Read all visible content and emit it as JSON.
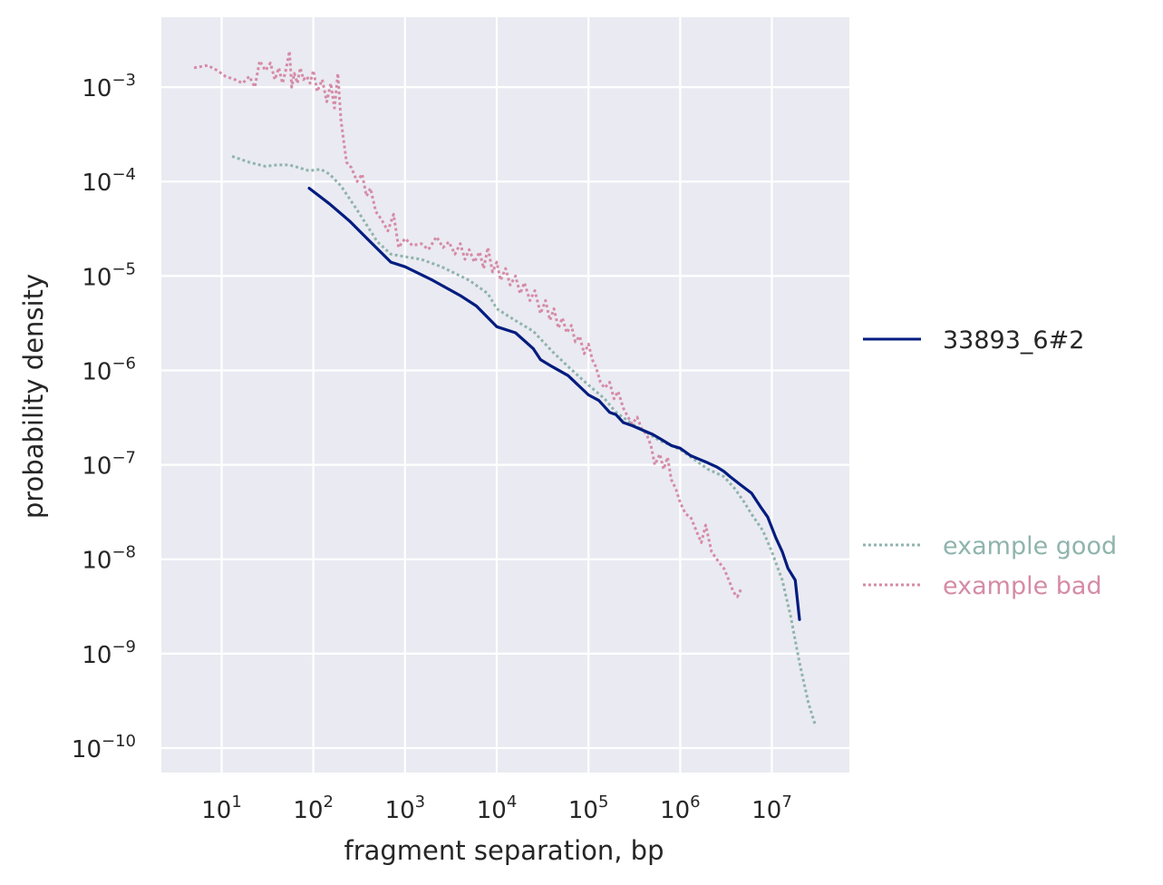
{
  "chart_data": {
    "type": "line",
    "title": "",
    "xlabel": "fragment separation, bp",
    "ylabel": "probability density",
    "xscale": "log",
    "yscale": "log",
    "xlim": [
      2.2,
      70000000
    ],
    "ylim": [
      5.5e-11,
      0.0055
    ],
    "grid": true,
    "background": "#eaeaf2",
    "x_tick_labels": [
      {
        "value": 10,
        "base": "10",
        "exp": "1"
      },
      {
        "value": 100,
        "base": "10",
        "exp": "2"
      },
      {
        "value": 1000,
        "base": "10",
        "exp": "3"
      },
      {
        "value": 10000,
        "base": "10",
        "exp": "4"
      },
      {
        "value": 100000,
        "base": "10",
        "exp": "5"
      },
      {
        "value": 1000000,
        "base": "10",
        "exp": "6"
      },
      {
        "value": 10000000,
        "base": "10",
        "exp": "7"
      }
    ],
    "y_tick_labels": [
      {
        "value": 0.001,
        "base": "10",
        "exp": "−3"
      },
      {
        "value": 0.0001,
        "base": "10",
        "exp": "−4"
      },
      {
        "value": 1e-05,
        "base": "10",
        "exp": "−5"
      },
      {
        "value": 1e-06,
        "base": "10",
        "exp": "−6"
      },
      {
        "value": 1e-07,
        "base": "10",
        "exp": "−7"
      },
      {
        "value": 1e-08,
        "base": "10",
        "exp": "−8"
      },
      {
        "value": 1e-09,
        "base": "10",
        "exp": "−9"
      },
      {
        "value": 1e-10,
        "base": "10",
        "exp": "−10"
      }
    ],
    "legend_placement": "right",
    "series": [
      {
        "name": "33893_6#2",
        "color": "#001c7f",
        "style": "solid",
        "legend_group": "upper",
        "points": [
          [
            90,
            8.5e-05
          ],
          [
            150,
            5.8e-05
          ],
          [
            250,
            3.8e-05
          ],
          [
            400,
            2.4e-05
          ],
          [
            700,
            1.4e-05
          ],
          [
            1000,
            1.25e-05
          ],
          [
            2000,
            9e-06
          ],
          [
            4000,
            6.2e-06
          ],
          [
            6000,
            4.8e-06
          ],
          [
            10000,
            2.9e-06
          ],
          [
            16000,
            2.5e-06
          ],
          [
            25000,
            1.7e-06
          ],
          [
            30000,
            1.3e-06
          ],
          [
            40000,
            1.1e-06
          ],
          [
            60000,
            8.8e-07
          ],
          [
            100000,
            5.5e-07
          ],
          [
            130000,
            4.8e-07
          ],
          [
            170000,
            3.6e-07
          ],
          [
            200000,
            3.4e-07
          ],
          [
            240000,
            2.8e-07
          ],
          [
            300000,
            2.6e-07
          ],
          [
            400000,
            2.3e-07
          ],
          [
            500000,
            2.1e-07
          ],
          [
            600000,
            1.9e-07
          ],
          [
            800000,
            1.6e-07
          ],
          [
            1000000,
            1.5e-07
          ],
          [
            1300000,
            1.25e-07
          ],
          [
            1600000,
            1.15e-07
          ],
          [
            2000000,
            1.05e-07
          ],
          [
            2500000,
            9.5e-08
          ],
          [
            3000000,
            8.5e-08
          ],
          [
            3500000,
            7.5e-08
          ],
          [
            4500000,
            6.2e-08
          ],
          [
            6000000,
            5e-08
          ],
          [
            7500000,
            3.6e-08
          ],
          [
            9000000,
            2.8e-08
          ],
          [
            11000000,
            1.7e-08
          ],
          [
            13000000,
            1.2e-08
          ],
          [
            15000000,
            8e-09
          ],
          [
            18000000,
            6e-09
          ],
          [
            20000000,
            2.3e-09
          ]
        ]
      },
      {
        "name": "example good",
        "color": "#8fb4ac",
        "style": "dotted",
        "legend_group": "lower",
        "points": [
          [
            13,
            0.000185
          ],
          [
            20,
            0.00016
          ],
          [
            30,
            0.000145
          ],
          [
            40,
            0.00015
          ],
          [
            55,
            0.00015
          ],
          [
            70,
            0.00014
          ],
          [
            90,
            0.00013
          ],
          [
            120,
            0.000135
          ],
          [
            150,
            0.00012
          ],
          [
            200,
            9e-05
          ],
          [
            300,
            5e-05
          ],
          [
            500,
            2.3e-05
          ],
          [
            700,
            1.7e-05
          ],
          [
            1000,
            1.6e-05
          ],
          [
            1500,
            1.5e-05
          ],
          [
            2500,
            1.25e-05
          ],
          [
            5000,
            9e-06
          ],
          [
            8000,
            6.5e-06
          ],
          [
            10000,
            4.5e-06
          ],
          [
            15000,
            3.5e-06
          ],
          [
            25000,
            2.6e-06
          ],
          [
            40000,
            1.6e-06
          ],
          [
            60000,
            1.1e-06
          ],
          [
            80000,
            8.5e-07
          ],
          [
            100000,
            7e-07
          ],
          [
            150000,
            5e-07
          ],
          [
            200000,
            3.6e-07
          ],
          [
            300000,
            2.7e-07
          ],
          [
            400000,
            2.3e-07
          ],
          [
            600000,
            1.8e-07
          ],
          [
            800000,
            1.6e-07
          ],
          [
            1000000,
            1.45e-07
          ],
          [
            1500000,
            1.1e-07
          ],
          [
            2000000,
            9e-08
          ],
          [
            3000000,
            7.5e-08
          ],
          [
            4000000,
            5.5e-08
          ],
          [
            5000000,
            4e-08
          ],
          [
            6000000,
            3e-08
          ],
          [
            8000000,
            2e-08
          ],
          [
            10000000,
            1.2e-08
          ],
          [
            13000000,
            6e-09
          ],
          [
            16000000,
            2.5e-09
          ],
          [
            20000000,
            8e-10
          ],
          [
            25000000,
            3e-10
          ],
          [
            30000000,
            1.7e-10
          ]
        ]
      },
      {
        "name": "example bad",
        "color": "#d58ba6",
        "style": "dotted",
        "legend_group": "lower",
        "points": [
          [
            5,
            0.0016
          ],
          [
            7,
            0.0017
          ],
          [
            9,
            0.0015
          ],
          [
            11,
            0.0013
          ],
          [
            14,
            0.0012
          ],
          [
            17,
            0.0011
          ],
          [
            20,
            0.0013
          ],
          [
            23,
            0.001
          ],
          [
            26,
            0.0019
          ],
          [
            30,
            0.0015
          ],
          [
            34,
            0.0018
          ],
          [
            38,
            0.0012
          ],
          [
            42,
            0.0016
          ],
          [
            46,
            0.0011
          ],
          [
            50,
            0.0015
          ],
          [
            55,
            0.0024
          ],
          [
            58,
            0.001
          ],
          [
            62,
            0.0014
          ],
          [
            67,
            0.0011
          ],
          [
            72,
            0.0016
          ],
          [
            78,
            0.0012
          ],
          [
            85,
            0.0013
          ],
          [
            92,
            0.0011
          ],
          [
            100,
            0.0015
          ],
          [
            110,
            0.0009
          ],
          [
            125,
            0.0012
          ],
          [
            140,
            0.0007
          ],
          [
            155,
            0.0011
          ],
          [
            170,
            0.0006
          ],
          [
            185,
            0.0014
          ],
          [
            200,
            0.00045
          ],
          [
            230,
            0.00016
          ],
          [
            260,
            0.00014
          ],
          [
            300,
            0.0001
          ],
          [
            340,
            0.00012
          ],
          [
            380,
            7e-05
          ],
          [
            420,
            8.5e-05
          ],
          [
            480,
            4.8e-05
          ],
          [
            550,
            4e-05
          ],
          [
            650,
            3e-05
          ],
          [
            750,
            4.5e-05
          ],
          [
            850,
            2e-05
          ],
          [
            1000,
            2.5e-05
          ],
          [
            1200,
            2.1e-05
          ],
          [
            1500,
            2.2e-05
          ],
          [
            1800,
            1.9e-05
          ],
          [
            2200,
            2.6e-05
          ],
          [
            2600,
            2e-05
          ],
          [
            3000,
            2.3e-05
          ],
          [
            3500,
            1.7e-05
          ],
          [
            4000,
            2.2e-05
          ],
          [
            4500,
            1.5e-05
          ],
          [
            5000,
            1.9e-05
          ],
          [
            5700,
            1.4e-05
          ],
          [
            6500,
            1.8e-05
          ],
          [
            7200,
            1.2e-05
          ],
          [
            8000,
            2e-05
          ],
          [
            9000,
            1.1e-05
          ],
          [
            10000,
            1.4e-05
          ],
          [
            11000,
            9e-06
          ],
          [
            12500,
            1.2e-05
          ],
          [
            14000,
            8e-06
          ],
          [
            16000,
            1e-05
          ],
          [
            18000,
            6.5e-06
          ],
          [
            20000,
            8.5e-06
          ],
          [
            23000,
            5.5e-06
          ],
          [
            26000,
            7e-06
          ],
          [
            30000,
            4e-06
          ],
          [
            34000,
            5.5e-06
          ],
          [
            38000,
            3.4e-06
          ],
          [
            42000,
            4.5e-06
          ],
          [
            47000,
            2.8e-06
          ],
          [
            52000,
            3.6e-06
          ],
          [
            58000,
            2.5e-06
          ],
          [
            65000,
            3e-06
          ],
          [
            72000,
            2e-06
          ],
          [
            80000,
            2.3e-06
          ],
          [
            90000,
            1.5e-06
          ],
          [
            100000,
            1.9e-06
          ],
          [
            110000,
            1.3e-06
          ],
          [
            120000,
            1.1e-06
          ],
          [
            135000,
            7.5e-07
          ],
          [
            150000,
            6.5e-07
          ],
          [
            170000,
            7.5e-07
          ],
          [
            190000,
            5e-07
          ],
          [
            210000,
            6e-07
          ],
          [
            240000,
            4e-07
          ],
          [
            270000,
            3.2e-07
          ],
          [
            300000,
            2.7e-07
          ],
          [
            340000,
            3.2e-07
          ],
          [
            380000,
            2.4e-07
          ],
          [
            430000,
            2.1e-07
          ],
          [
            480000,
            1.6e-07
          ],
          [
            530000,
            1e-07
          ],
          [
            600000,
            1.3e-07
          ],
          [
            660000,
            9e-08
          ],
          [
            730000,
            1.2e-07
          ],
          [
            800000,
            7e-08
          ],
          [
            900000,
            5.5e-08
          ],
          [
            1000000,
            4e-08
          ],
          [
            1150000,
            3e-08
          ],
          [
            1300000,
            2.8e-08
          ],
          [
            1500000,
            2e-08
          ],
          [
            1700000,
            1.5e-08
          ],
          [
            1900000,
            2.3e-08
          ],
          [
            2200000,
            1.2e-08
          ],
          [
            2600000,
            9.5e-09
          ],
          [
            3000000,
            8e-09
          ],
          [
            3400000,
            6e-09
          ],
          [
            3800000,
            4.5e-09
          ],
          [
            4200000,
            4e-09
          ],
          [
            4700000,
            5e-09
          ]
        ]
      }
    ]
  }
}
